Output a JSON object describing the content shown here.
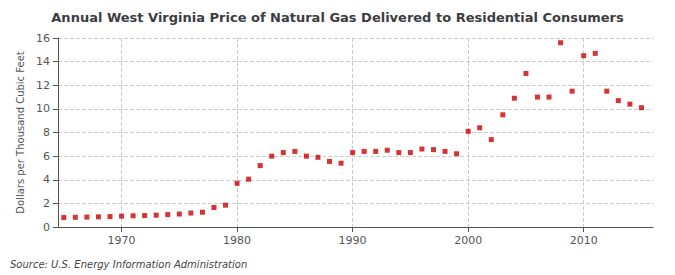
{
  "chart_data": {
    "type": "scatter",
    "title": "Annual West Virginia Price of Natural Gas Delivered to Residential Consumers",
    "ylabel": "Dollars per Thousand Cubic Feet",
    "source": "Source: U.S. Energy Information Administration",
    "x": [
      1965,
      1966,
      1967,
      1968,
      1969,
      1970,
      1971,
      1972,
      1973,
      1974,
      1975,
      1976,
      1977,
      1978,
      1979,
      1980,
      1981,
      1982,
      1983,
      1984,
      1985,
      1986,
      1987,
      1988,
      1989,
      1990,
      1991,
      1992,
      1993,
      1994,
      1995,
      1996,
      1997,
      1998,
      1999,
      2000,
      2001,
      2002,
      2003,
      2004,
      2005,
      2006,
      2007,
      2008,
      2009,
      2010,
      2011,
      2012,
      2013,
      2014,
      2015
    ],
    "values": [
      0.8,
      0.82,
      0.84,
      0.86,
      0.88,
      0.92,
      0.95,
      0.97,
      1.0,
      1.05,
      1.1,
      1.18,
      1.25,
      1.65,
      1.85,
      3.7,
      4.05,
      5.2,
      6.0,
      6.3,
      6.4,
      6.0,
      5.9,
      5.55,
      5.4,
      6.3,
      6.4,
      6.4,
      6.5,
      6.3,
      6.3,
      6.6,
      6.55,
      6.4,
      6.2,
      8.1,
      8.4,
      7.4,
      9.5,
      10.9,
      13.0,
      11.0,
      11.0,
      15.6,
      11.5,
      14.5,
      14.7,
      11.5,
      10.7,
      10.4,
      10.1
    ],
    "color": "#cc0000",
    "marker": "square",
    "xlim": [
      1964.5,
      2016
    ],
    "xticks": [
      1970,
      1980,
      1990,
      2000,
      2010
    ],
    "ylim": [
      0,
      16
    ],
    "yticks": [
      0,
      2,
      4,
      6,
      8,
      10,
      12,
      14,
      16
    ],
    "grid": true
  }
}
